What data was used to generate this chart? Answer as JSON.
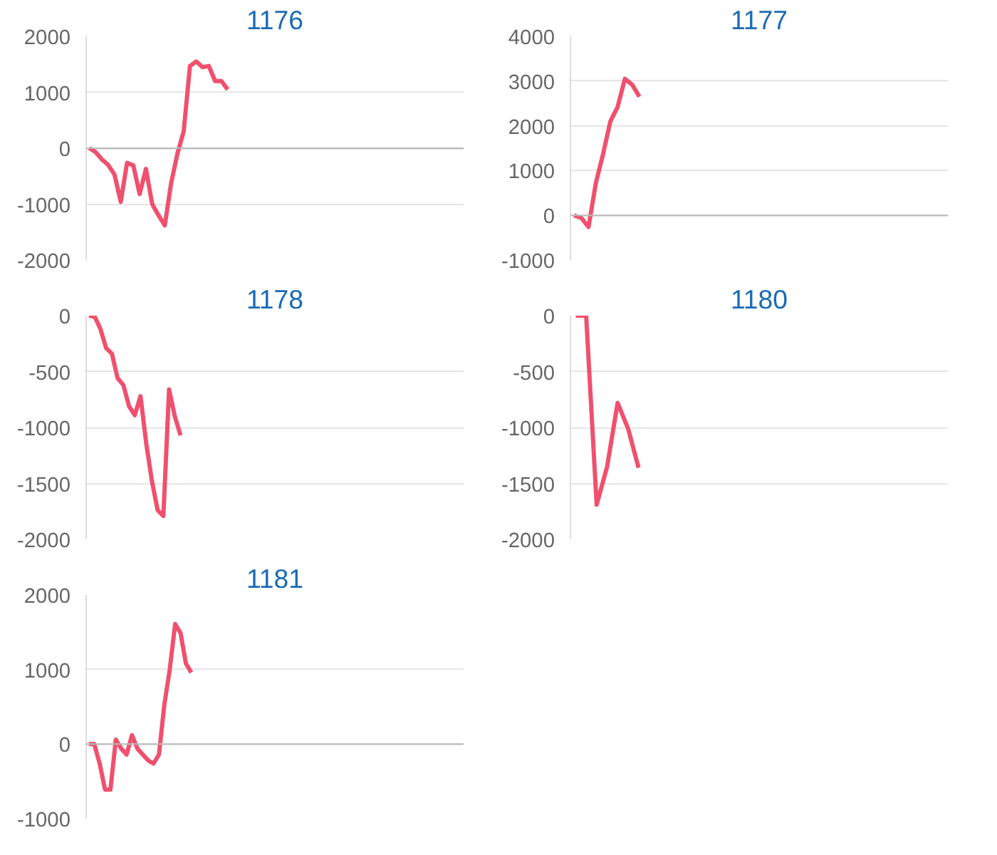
{
  "chart_data": [
    {
      "type": "line",
      "title": "1176",
      "color": "#f0506e",
      "grid": "y",
      "tick_labels": "y",
      "legend": false,
      "marker": "none",
      "line_style": "solid",
      "ylim": [
        -2000,
        2000
      ],
      "yticks": [
        -2000,
        -1000,
        0,
        1000,
        2000
      ],
      "categories": [
        null,
        null,
        null,
        null,
        null,
        null,
        null,
        null,
        null,
        null,
        null,
        null,
        null,
        null,
        null,
        null,
        null,
        null,
        null,
        null,
        null,
        null,
        null,
        null,
        null,
        null,
        null,
        null,
        null,
        null,
        null,
        null,
        null,
        null,
        null,
        null,
        null,
        null,
        null,
        null,
        null,
        null,
        null,
        null,
        null,
        null,
        null,
        null,
        null,
        null,
        null,
        null,
        null,
        null,
        null,
        null,
        null,
        null,
        null,
        null
      ],
      "values": [
        0,
        -70,
        -200,
        -300,
        -470,
        -960,
        -260,
        -310,
        -820,
        -370,
        -1000,
        -1200,
        -1380,
        -630,
        -100,
        300,
        1470,
        1550,
        1450,
        1470,
        1200,
        1200,
        1050,
        null,
        null,
        null,
        null,
        null,
        null,
        null,
        null,
        null,
        null,
        null,
        null,
        null,
        null,
        null,
        null,
        null,
        null,
        null,
        null,
        null,
        null,
        null,
        null,
        null,
        null,
        null,
        null,
        null,
        null,
        null,
        null,
        null,
        null,
        null,
        null,
        null
      ]
    },
    {
      "type": "line",
      "title": "1177",
      "color": "#f0506e",
      "grid": "y",
      "tick_labels": "y",
      "legend": false,
      "marker": "none",
      "line_style": "solid",
      "ylim": [
        -1000,
        4000
      ],
      "yticks": [
        -1000,
        0,
        1000,
        2000,
        3000,
        4000
      ],
      "categories": [
        null,
        null,
        null,
        null,
        null,
        null,
        null,
        null,
        null,
        null,
        null,
        null,
        null,
        null,
        null,
        null,
        null,
        null,
        null,
        null,
        null,
        null,
        null,
        null,
        null,
        null,
        null,
        null,
        null,
        null,
        null,
        null,
        null,
        null,
        null,
        null,
        null,
        null,
        null,
        null,
        null,
        null,
        null,
        null,
        null,
        null,
        null,
        null,
        null,
        null,
        null,
        null
      ],
      "values": [
        0,
        -60,
        -260,
        720,
        1370,
        2100,
        2420,
        3050,
        2920,
        2650,
        null,
        null,
        null,
        null,
        null,
        null,
        null,
        null,
        null,
        null,
        null,
        null,
        null,
        null,
        null,
        null,
        null,
        null,
        null,
        null,
        null,
        null,
        null,
        null,
        null,
        null,
        null,
        null,
        null,
        null,
        null,
        null,
        null,
        null,
        null,
        null,
        null,
        null,
        null,
        null,
        null,
        null
      ]
    },
    {
      "type": "line",
      "title": "1178",
      "color": "#f0506e",
      "grid": "y",
      "tick_labels": "y",
      "legend": false,
      "marker": "none",
      "line_style": "solid",
      "ylim": [
        -2000,
        0
      ],
      "yticks": [
        -2000,
        -1500,
        -1000,
        -500,
        0
      ],
      "categories": [
        null,
        null,
        null,
        null,
        null,
        null,
        null,
        null,
        null,
        null,
        null,
        null,
        null,
        null,
        null,
        null,
        null,
        null,
        null,
        null,
        null,
        null,
        null,
        null,
        null,
        null,
        null,
        null,
        null,
        null,
        null,
        null,
        null,
        null,
        null,
        null,
        null,
        null,
        null,
        null,
        null,
        null,
        null,
        null,
        null,
        null,
        null,
        null,
        null,
        null,
        null,
        null,
        null,
        null,
        null,
        null,
        null,
        null,
        null,
        null,
        null,
        null,
        null,
        null,
        null,
        null
      ],
      "values": [
        0,
        -10,
        -120,
        -290,
        -340,
        -560,
        -620,
        -810,
        -890,
        -720,
        -1140,
        -1480,
        -1740,
        -1790,
        -660,
        -900,
        -1070,
        null,
        null,
        null,
        null,
        null,
        null,
        null,
        null,
        null,
        null,
        null,
        null,
        null,
        null,
        null,
        null,
        null,
        null,
        null,
        null,
        null,
        null,
        null,
        null,
        null,
        null,
        null,
        null,
        null,
        null,
        null,
        null,
        null,
        null,
        null,
        null,
        null,
        null,
        null,
        null,
        null,
        null,
        null,
        null,
        null,
        null,
        null,
        null,
        null
      ]
    },
    {
      "type": "line",
      "title": "1180",
      "color": "#f0506e",
      "grid": "y",
      "tick_labels": "y",
      "legend": false,
      "marker": "none",
      "line_style": "solid",
      "ylim": [
        -2000,
        0
      ],
      "yticks": [
        -2000,
        -1500,
        -1000,
        -500,
        0
      ],
      "categories": [
        null,
        null,
        null,
        null,
        null,
        null,
        null,
        null,
        null,
        null,
        null,
        null,
        null,
        null,
        null,
        null,
        null,
        null,
        null,
        null,
        null,
        null,
        null,
        null,
        null,
        null,
        null,
        null,
        null,
        null,
        null,
        null,
        null,
        null,
        null,
        null
      ],
      "values": [
        0,
        0,
        -1690,
        -1350,
        -780,
        -1010,
        -1360,
        null,
        null,
        null,
        null,
        null,
        null,
        null,
        null,
        null,
        null,
        null,
        null,
        null,
        null,
        null,
        null,
        null,
        null,
        null,
        null,
        null,
        null,
        null,
        null,
        null,
        null,
        null,
        null,
        null
      ]
    },
    {
      "type": "line",
      "title": "1181",
      "color": "#f0506e",
      "grid": "y",
      "tick_labels": "y",
      "legend": false,
      "marker": "none",
      "line_style": "solid",
      "ylim": [
        -1000,
        2000
      ],
      "yticks": [
        -1000,
        0,
        1000,
        2000
      ],
      "categories": [
        null,
        null,
        null,
        null,
        null,
        null,
        null,
        null,
        null,
        null,
        null,
        null,
        null,
        null,
        null,
        null,
        null,
        null,
        null,
        null,
        null,
        null,
        null,
        null,
        null,
        null,
        null,
        null,
        null,
        null,
        null,
        null,
        null,
        null,
        null,
        null,
        null,
        null,
        null,
        null,
        null,
        null,
        null,
        null,
        null,
        null,
        null,
        null,
        null,
        null,
        null,
        null,
        null,
        null,
        null,
        null,
        null,
        null,
        null,
        null,
        null,
        null,
        null,
        null,
        null,
        null,
        null,
        null,
        null,
        null
      ],
      "values": [
        0,
        0,
        -260,
        -610,
        -610,
        60,
        -60,
        -140,
        120,
        -60,
        -140,
        -220,
        -260,
        -140,
        530,
        1000,
        1610,
        1490,
        1080,
        960,
        null,
        null,
        null,
        null,
        null,
        null,
        null,
        null,
        null,
        null,
        null,
        null,
        null,
        null,
        null,
        null,
        null,
        null,
        null,
        null,
        null,
        null,
        null,
        null,
        null,
        null,
        null,
        null,
        null,
        null,
        null,
        null,
        null,
        null,
        null,
        null,
        null,
        null,
        null,
        null,
        null,
        null,
        null,
        null,
        null,
        null,
        null,
        null,
        null,
        null
      ]
    }
  ]
}
